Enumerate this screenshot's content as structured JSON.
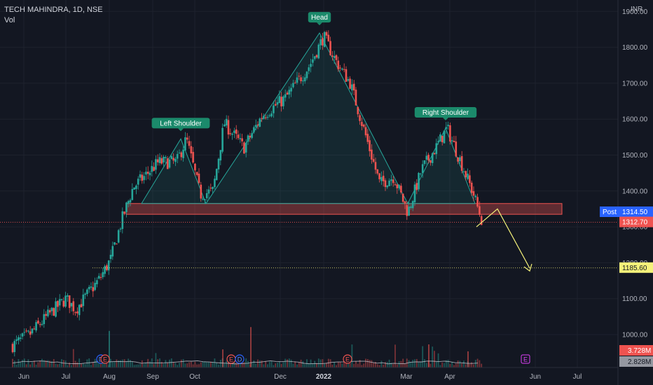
{
  "header": {
    "title": "TECH MAHINDRA, 1D, NSE",
    "indicator": "Vol",
    "currency": "INR"
  },
  "colors": {
    "background": "#131722",
    "up": "#26a69a",
    "down": "#ef5350",
    "pattern_fill": "#26a69a",
    "zone": "#ef5350",
    "arrow": "#f5f27a",
    "post_badge": "#2962ff"
  },
  "chart_data": {
    "type": "candlestick",
    "y_axis": {
      "ticks": [
        1000,
        1100,
        1200,
        1300,
        1400,
        1500,
        1600,
        1700,
        1800,
        1900
      ],
      "ylim": [
        960,
        1940
      ]
    },
    "x_axis": {
      "ticks": [
        "Jun",
        "Jul",
        "Aug",
        "Sep",
        "Oct",
        "Dec",
        "2022",
        "Mar",
        "Apr",
        "Jun",
        "Jul"
      ]
    },
    "price_path": [
      [
        "2021-05-24",
        970
      ],
      [
        "2021-06-05",
        1000
      ],
      [
        "2021-06-20",
        1060
      ],
      [
        "2021-07-01",
        1100
      ],
      [
        "2021-07-08",
        1070
      ],
      [
        "2021-07-16",
        1110
      ],
      [
        "2021-07-25",
        1155
      ],
      [
        "2021-08-02",
        1210
      ],
      [
        "2021-08-10",
        1320
      ],
      [
        "2021-08-18",
        1410
      ],
      [
        "2021-08-26",
        1440
      ],
      [
        "2021-09-05",
        1480
      ],
      [
        "2021-09-18",
        1480
      ],
      [
        "2021-09-25",
        1545
      ],
      [
        "2021-10-05",
        1390
      ],
      [
        "2021-10-14",
        1400
      ],
      [
        "2021-10-22",
        1590
      ],
      [
        "2021-11-05",
        1520
      ],
      [
        "2021-11-18",
        1610
      ],
      [
        "2021-12-05",
        1660
      ],
      [
        "2021-12-22",
        1750
      ],
      [
        "2022-01-01",
        1830
      ],
      [
        "2022-01-10",
        1760
      ],
      [
        "2022-01-20",
        1700
      ],
      [
        "2022-02-01",
        1540
      ],
      [
        "2022-02-10",
        1420
      ],
      [
        "2022-02-20",
        1440
      ],
      [
        "2022-03-02",
        1340
      ],
      [
        "2022-03-12",
        1460
      ],
      [
        "2022-03-22",
        1520
      ],
      [
        "2022-03-30",
        1575
      ],
      [
        "2022-04-10",
        1470
      ],
      [
        "2022-04-18",
        1390
      ],
      [
        "2022-04-24",
        1315
      ]
    ],
    "volume_ylim": [
      0,
      100
    ],
    "volume_average": 12,
    "pattern": {
      "type": "head-and-shoulders",
      "labels": [
        "Left Shoulder",
        "Head",
        "Right Shoulder"
      ],
      "neckline": 1365,
      "vertices": [
        [
          "2021-08-24",
          1365,
          "flat"
        ],
        [
          "2021-09-21",
          1545,
          "Left Shoulder"
        ],
        [
          "2021-10-09",
          1365,
          "flat"
        ],
        [
          "2021-12-29",
          1840,
          "Head"
        ],
        [
          "2022-03-02",
          1365,
          "flat"
        ],
        [
          "2022-03-29",
          1575,
          "Right Shoulder"
        ],
        [
          "2022-04-19",
          1365,
          "flat"
        ]
      ]
    },
    "zone": {
      "from": "2021-08-13",
      "to": "2022-06-20",
      "low": 1335,
      "high": 1365
    },
    "projection": [
      [
        "2022-04-20",
        1300
      ],
      [
        "2022-05-05",
        1350
      ],
      [
        "2022-05-28",
        1185
      ]
    ],
    "levels": [
      {
        "value": 1185.6,
        "label": "1185.60",
        "style": "dotted"
      },
      {
        "value": 1312.7,
        "label": "1312.70",
        "style": "dotted"
      }
    ],
    "price_labels": [
      {
        "text": "Post",
        "value": "1314.50",
        "y": 1335
      },
      {
        "text": "",
        "value": "1312.70",
        "y": 1312.7
      },
      {
        "text": "",
        "value": "1185.60",
        "y": 1185.6
      }
    ],
    "volume_labels": [
      "3.728M",
      "2.828M"
    ],
    "event_markers": [
      {
        "date": "2021-07-26",
        "label": "D"
      },
      {
        "date": "2021-07-29",
        "label": "E"
      },
      {
        "date": "2021-10-27",
        "label": "E"
      },
      {
        "date": "2021-11-02",
        "label": "D"
      },
      {
        "date": "2022-01-18",
        "label": "E"
      },
      {
        "date": "2022-05-25",
        "label": "E"
      }
    ]
  }
}
